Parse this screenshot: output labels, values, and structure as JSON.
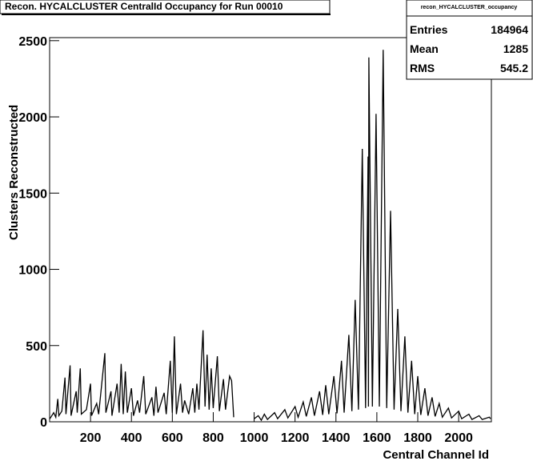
{
  "chart_data": {
    "type": "line",
    "title": "Recon. HYCALCLUSTER CentralId Occupancy for Run 00010",
    "x_label": "Central Channel Id",
    "y_label": "Clusters Reconstructed",
    "stats": {
      "title": "recon_HYCALCLUSTER_occupancy",
      "rows": [
        {
          "label": "Entries",
          "value": 184964
        },
        {
          "label": "Mean",
          "value": 1285
        },
        {
          "label": "RMS",
          "value": 545.2
        }
      ]
    },
    "xlim": [
      0,
      2160
    ],
    "ylim": [
      0,
      2520
    ],
    "xticks": [
      200,
      400,
      600,
      800,
      1000,
      1200,
      1400,
      1600,
      1800,
      2000
    ],
    "yticks": [
      0,
      500,
      1000,
      1500,
      2000,
      2500
    ],
    "series": [
      {
        "color": "#000000",
        "x": [
          1,
          20,
          30,
          40,
          45,
          60,
          75,
          80,
          100,
          105,
          130,
          135,
          150,
          155,
          180,
          200,
          205,
          230,
          240,
          270,
          275,
          300,
          305,
          330,
          340,
          350,
          360,
          370,
          380,
          400,
          410,
          430,
          440,
          460,
          470,
          500,
          510,
          520,
          530,
          560,
          570,
          590,
          600,
          610,
          620,
          640,
          650,
          660,
          680,
          700,
          710,
          720,
          730,
          750,
          760,
          770,
          780,
          790,
          800,
          820,
          830,
          850,
          860,
          880,
          890,
          900,
          950,
          1000,
          1020,
          1035,
          1050,
          1065,
          1100,
          1115,
          1150,
          1165,
          1200,
          1215,
          1240,
          1255,
          1280,
          1295,
          1320,
          1335,
          1350,
          1365,
          1390,
          1405,
          1427,
          1440,
          1463,
          1478,
          1494,
          1510,
          1529,
          1545,
          1557,
          1559,
          1561,
          1578,
          1596,
          1612,
          1631,
          1648,
          1667,
          1684,
          1702,
          1718,
          1737,
          1752,
          1770,
          1785,
          1800,
          1815,
          1835,
          1850,
          1870,
          1885,
          1905,
          1920,
          1950,
          1965,
          2000,
          2015,
          2050,
          2065,
          2100,
          2115,
          2150,
          2156
        ],
        "values": [
          20,
          60,
          30,
          150,
          40,
          70,
          290,
          50,
          370,
          40,
          200,
          60,
          350,
          50,
          80,
          250,
          40,
          120,
          50,
          450,
          60,
          200,
          40,
          250,
          60,
          380,
          50,
          330,
          60,
          220,
          40,
          140,
          60,
          300,
          50,
          160,
          40,
          230,
          60,
          190,
          50,
          400,
          60,
          560,
          50,
          250,
          60,
          140,
          50,
          220,
          60,
          250,
          80,
          600,
          100,
          440,
          80,
          350,
          90,
          430,
          70,
          280,
          80,
          300,
          270,
          30,
          null,
          20,
          40,
          10,
          50,
          15,
          60,
          20,
          80,
          25,
          100,
          30,
          130,
          35,
          160,
          40,
          200,
          45,
          240,
          50,
          300,
          55,
          400,
          60,
          570,
          70,
          800,
          80,
          1790,
          90,
          1740,
          100,
          2390,
          100,
          2020,
          100,
          2440,
          90,
          1384,
          80,
          740,
          70,
          560,
          60,
          400,
          50,
          300,
          45,
          220,
          40,
          160,
          35,
          120,
          30,
          90,
          25,
          70,
          20,
          50,
          15,
          40,
          15,
          30,
          20
        ]
      }
    ]
  }
}
